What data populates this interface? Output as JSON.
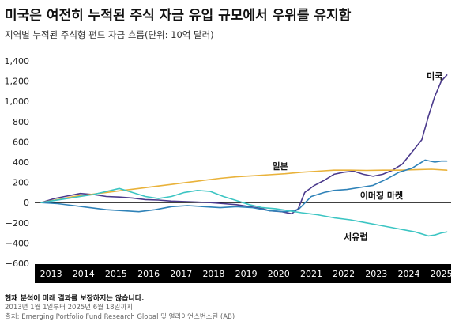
{
  "title": "미국은 여전히 누적된 주식 자금 유입 규모에서 우위를 유지함",
  "subtitle": "지역별 누적된 주식형 펀드 자금 흐름(단위: 10억 달러)",
  "footnote": "현재 분석이 미래 결과를 보장하지는 않습니다.",
  "period": "2013년 1월 1일부터 2025년 6월 18일까지",
  "source": "출처: Emerging Portfolio Fund Research Global 및 얼라이언스번스틴 (AB)",
  "chart_data": {
    "type": "line",
    "ylim": [
      -600,
      1400
    ],
    "yticks": [
      -600,
      -400,
      -200,
      0,
      200,
      400,
      600,
      800,
      1000,
      1200,
      1400
    ],
    "ytick_labels": [
      "−600",
      "−400",
      "−200",
      "0",
      "200",
      "400",
      "600",
      "800",
      "1,000",
      "1,200",
      "1,400"
    ],
    "xlim": [
      2012.8,
      2025.6
    ],
    "xticks": [
      2013,
      2014,
      2015,
      2016,
      2017,
      2018,
      2019,
      2020,
      2021,
      2022,
      2023,
      2024,
      2025
    ],
    "grid": false,
    "series": [
      {
        "name": "미국",
        "color": "#4b3a8c",
        "points": [
          [
            2013.0,
            0
          ],
          [
            2013.4,
            40
          ],
          [
            2013.8,
            65
          ],
          [
            2014.2,
            90
          ],
          [
            2014.6,
            80
          ],
          [
            2015.0,
            60
          ],
          [
            2015.4,
            55
          ],
          [
            2015.8,
            45
          ],
          [
            2016.2,
            30
          ],
          [
            2016.6,
            25
          ],
          [
            2017.0,
            15
          ],
          [
            2017.4,
            10
          ],
          [
            2017.8,
            5
          ],
          [
            2018.2,
            0
          ],
          [
            2018.6,
            -10
          ],
          [
            2019.0,
            -20
          ],
          [
            2019.4,
            -40
          ],
          [
            2019.8,
            -60
          ],
          [
            2020.0,
            -80
          ],
          [
            2020.4,
            -90
          ],
          [
            2020.7,
            -110
          ],
          [
            2020.9,
            -60
          ],
          [
            2021.1,
            100
          ],
          [
            2021.4,
            170
          ],
          [
            2021.7,
            220
          ],
          [
            2022.0,
            280
          ],
          [
            2022.3,
            300
          ],
          [
            2022.6,
            310
          ],
          [
            2022.9,
            280
          ],
          [
            2023.2,
            260
          ],
          [
            2023.5,
            280
          ],
          [
            2023.8,
            320
          ],
          [
            2024.1,
            380
          ],
          [
            2024.4,
            500
          ],
          [
            2024.7,
            620
          ],
          [
            2024.9,
            850
          ],
          [
            2025.1,
            1050
          ],
          [
            2025.3,
            1200
          ],
          [
            2025.47,
            1260
          ]
        ]
      },
      {
        "name": "일본",
        "color": "#e9b23a",
        "points": [
          [
            2013.0,
            0
          ],
          [
            2013.5,
            30
          ],
          [
            2014.0,
            60
          ],
          [
            2014.5,
            80
          ],
          [
            2015.0,
            100
          ],
          [
            2015.5,
            120
          ],
          [
            2016.0,
            140
          ],
          [
            2016.5,
            160
          ],
          [
            2017.0,
            180
          ],
          [
            2017.5,
            200
          ],
          [
            2018.0,
            220
          ],
          [
            2018.5,
            240
          ],
          [
            2019.0,
            255
          ],
          [
            2019.5,
            265
          ],
          [
            2020.0,
            275
          ],
          [
            2020.5,
            285
          ],
          [
            2021.0,
            300
          ],
          [
            2021.5,
            310
          ],
          [
            2022.0,
            320
          ],
          [
            2022.5,
            320
          ],
          [
            2023.0,
            318
          ],
          [
            2023.5,
            320
          ],
          [
            2024.0,
            320
          ],
          [
            2024.5,
            325
          ],
          [
            2025.0,
            330
          ],
          [
            2025.47,
            320
          ]
        ]
      },
      {
        "name": "이머징 마켓",
        "color": "#2f82b8",
        "points": [
          [
            2013.0,
            0
          ],
          [
            2013.5,
            -10
          ],
          [
            2014.0,
            -30
          ],
          [
            2014.5,
            -50
          ],
          [
            2015.0,
            -70
          ],
          [
            2015.5,
            -80
          ],
          [
            2016.0,
            -90
          ],
          [
            2016.5,
            -70
          ],
          [
            2017.0,
            -40
          ],
          [
            2017.5,
            -30
          ],
          [
            2018.0,
            -40
          ],
          [
            2018.5,
            -50
          ],
          [
            2019.0,
            -40
          ],
          [
            2019.5,
            -50
          ],
          [
            2020.0,
            -80
          ],
          [
            2020.5,
            -90
          ],
          [
            2020.9,
            -70
          ],
          [
            2021.3,
            60
          ],
          [
            2021.7,
            100
          ],
          [
            2022.0,
            120
          ],
          [
            2022.4,
            130
          ],
          [
            2022.8,
            150
          ],
          [
            2023.2,
            170
          ],
          [
            2023.6,
            230
          ],
          [
            2024.0,
            300
          ],
          [
            2024.4,
            340
          ],
          [
            2024.8,
            420
          ],
          [
            2025.1,
            400
          ],
          [
            2025.3,
            410
          ],
          [
            2025.47,
            410
          ]
        ]
      },
      {
        "name": "서유럽",
        "color": "#3cc5c3",
        "points": [
          [
            2013.0,
            0
          ],
          [
            2013.4,
            20
          ],
          [
            2013.8,
            40
          ],
          [
            2014.2,
            60
          ],
          [
            2014.6,
            80
          ],
          [
            2015.0,
            110
          ],
          [
            2015.4,
            140
          ],
          [
            2015.8,
            100
          ],
          [
            2016.2,
            60
          ],
          [
            2016.6,
            40
          ],
          [
            2017.0,
            60
          ],
          [
            2017.4,
            100
          ],
          [
            2017.8,
            120
          ],
          [
            2018.2,
            110
          ],
          [
            2018.6,
            60
          ],
          [
            2019.0,
            20
          ],
          [
            2019.4,
            -20
          ],
          [
            2019.8,
            -50
          ],
          [
            2020.2,
            -60
          ],
          [
            2020.6,
            -80
          ],
          [
            2021.0,
            -100
          ],
          [
            2021.5,
            -120
          ],
          [
            2022.0,
            -150
          ],
          [
            2022.5,
            -170
          ],
          [
            2023.0,
            -200
          ],
          [
            2023.5,
            -230
          ],
          [
            2024.0,
            -260
          ],
          [
            2024.5,
            -290
          ],
          [
            2024.9,
            -330
          ],
          [
            2025.1,
            -320
          ],
          [
            2025.3,
            -300
          ],
          [
            2025.47,
            -290
          ]
        ]
      }
    ],
    "labels": [
      {
        "text": "미국",
        "x": 2024.85,
        "y": 1250
      },
      {
        "text": "일본",
        "x": 2020.1,
        "y": 360
      },
      {
        "text": "이머징 마켓",
        "x": 2022.8,
        "y": 70
      },
      {
        "text": "서유럽",
        "x": 2022.3,
        "y": -340
      }
    ]
  }
}
